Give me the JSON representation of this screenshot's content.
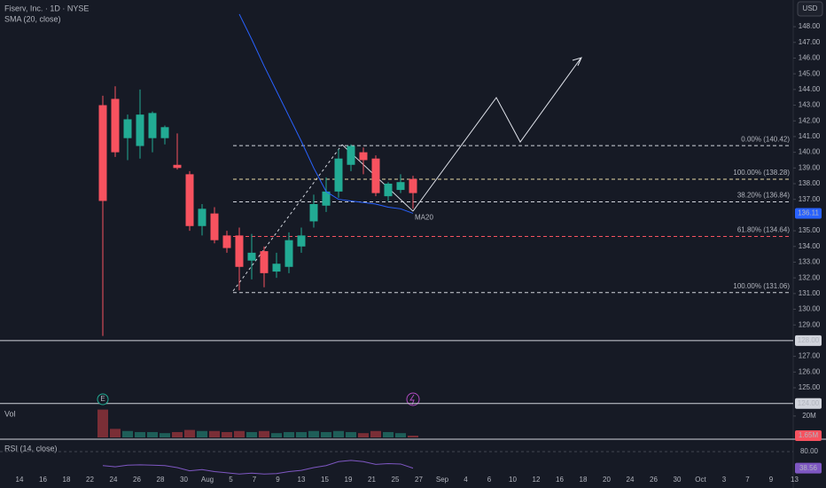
{
  "chart_data": {
    "type": "candlestick",
    "title": "Fiserv, Inc. · 1D · NYSE",
    "currency": "USD",
    "x_labels": [
      "14",
      "16",
      "18",
      "22",
      "24",
      "26",
      "28",
      "30",
      "Aug",
      "5",
      "7",
      "9",
      "13",
      "15",
      "19",
      "21",
      "25",
      "27",
      "Sep",
      "4",
      "6",
      "10",
      "12",
      "16",
      "18",
      "20",
      "24",
      "26",
      "30",
      "Oct",
      "3",
      "7",
      "9",
      "13"
    ],
    "ylim": [
      123.7,
      149.7
    ],
    "yticks": [
      {
        "value": 125,
        "label": "125.00"
      },
      {
        "value": 126,
        "label": "126.00"
      },
      {
        "value": 127,
        "label": "127.00"
      },
      {
        "value": 129,
        "label": "129.00"
      },
      {
        "value": 130,
        "label": "130.00"
      },
      {
        "value": 131,
        "label": "131.00"
      },
      {
        "value": 132,
        "label": "132.00"
      },
      {
        "value": 133,
        "label": "133.00"
      },
      {
        "value": 134,
        "label": "134.00"
      },
      {
        "value": 135,
        "label": "135.00"
      },
      {
        "value": 137,
        "label": "137.00"
      },
      {
        "value": 138,
        "label": "138.00"
      },
      {
        "value": 139,
        "label": "139.00"
      },
      {
        "value": 140,
        "label": "140.00"
      },
      {
        "value": 141,
        "label": "141.00"
      },
      {
        "value": 142,
        "label": "142.00"
      },
      {
        "value": 143,
        "label": "143.00"
      },
      {
        "value": 144,
        "label": "144.00"
      },
      {
        "value": 145,
        "label": "145.00"
      },
      {
        "value": 146,
        "label": "146.00"
      },
      {
        "value": 147,
        "label": "147.00"
      },
      {
        "value": 148,
        "label": "148.00"
      }
    ],
    "up_color": "#22ab94",
    "down_color": "#f7525f",
    "open": [
      143.0,
      143.4,
      140.9,
      140.4,
      140.9,
      140.9,
      139.2,
      138.6,
      135.3,
      136.1,
      134.7,
      134.7,
      133.1,
      133.7,
      132.4,
      132.7,
      134.0,
      135.6,
      136.6,
      137.5,
      139.2,
      140.0,
      139.6,
      137.2,
      137.6,
      138.3
    ],
    "high": [
      143.6,
      144.2,
      142.4,
      144.0,
      142.6,
      141.7,
      141.2,
      138.8,
      136.7,
      136.5,
      135.0,
      135.2,
      134.8,
      134.0,
      133.6,
      134.9,
      135.2,
      137.3,
      138.4,
      140.2,
      140.5,
      140.3,
      139.8,
      138.1,
      138.6,
      138.5
    ],
    "low": [
      128.3,
      139.7,
      139.5,
      139.6,
      140.0,
      140.5,
      138.9,
      135.0,
      134.7,
      134.2,
      133.6,
      131.2,
      131.9,
      131.4,
      132.0,
      132.3,
      133.6,
      135.2,
      136.2,
      137.1,
      138.8,
      138.6,
      137.2,
      136.9,
      137.4,
      136.4
    ],
    "close": [
      136.9,
      140.0,
      142.1,
      142.4,
      142.5,
      141.6,
      139.0,
      135.3,
      136.4,
      134.4,
      133.9,
      132.7,
      133.6,
      132.3,
      132.9,
      134.4,
      134.7,
      136.7,
      137.5,
      139.6,
      140.4,
      139.5,
      137.4,
      138.0,
      138.1,
      137.4
    ],
    "sma": {
      "name": "SMA (20, close)",
      "label": "MA20",
      "color": "#2962ff",
      "values": [
        null,
        null,
        null,
        null,
        null,
        null,
        null,
        null,
        null,
        null,
        null,
        148.8,
        147.2,
        145.5,
        143.9,
        142.3,
        140.7,
        139.0,
        137.5,
        137.0,
        136.9,
        136.8,
        136.7,
        136.5,
        136.4,
        136.11
      ]
    },
    "fib": [
      {
        "label": "0.00% (140.42)",
        "price": 140.42,
        "color": "#d1d4dc"
      },
      {
        "label": "100.00% (138.28)",
        "price": 138.28,
        "color": "#e8d9a8"
      },
      {
        "label": "38.20% (136.84)",
        "price": 136.84,
        "color": "#d1d4dc"
      },
      {
        "label": "61.80% (134.64)",
        "price": 134.64,
        "color": "#f7525f"
      },
      {
        "label": "100.00% (131.06)",
        "price": 131.06,
        "color": "#d1d4dc"
      }
    ],
    "hlines": [
      {
        "value": 128,
        "label": "128.00"
      },
      {
        "value": 124,
        "label": "124.00"
      }
    ],
    "volume": {
      "name": "Vol",
      "ylim": [
        0,
        29000000
      ],
      "yticks": [
        {
          "value": 20000000,
          "label": "20M"
        }
      ],
      "values": [
        26000000,
        8000000,
        6000000,
        5000000,
        5000000,
        4000000,
        5000000,
        7000000,
        6000000,
        6000000,
        5000000,
        6000000,
        5000000,
        6000000,
        4000000,
        5000000,
        5000000,
        6000000,
        5000000,
        6000000,
        5000000,
        4000000,
        6000000,
        5000000,
        4000000,
        1650000
      ],
      "value_labels": [
        null,
        null,
        null,
        null,
        null,
        null,
        null,
        null,
        null,
        null,
        null,
        null,
        null,
        null,
        null,
        null,
        null,
        null,
        null,
        null,
        null,
        null,
        null,
        null,
        null,
        "1.65M"
      ]
    },
    "rsi": {
      "name": "RSI (14, close)",
      "color": "#7e57c2",
      "ylim": [
        0,
        100
      ],
      "yticks": [
        {
          "value": 80,
          "label": "80.00"
        }
      ],
      "values": [
        45,
        42,
        46,
        47,
        46,
        45,
        40,
        32,
        35,
        30,
        27,
        24,
        26,
        24,
        25,
        30,
        33,
        40,
        45,
        55,
        58,
        55,
        48,
        50,
        49,
        38.56
      ]
    },
    "events": [
      {
        "label": "E"
      }
    ]
  }
}
